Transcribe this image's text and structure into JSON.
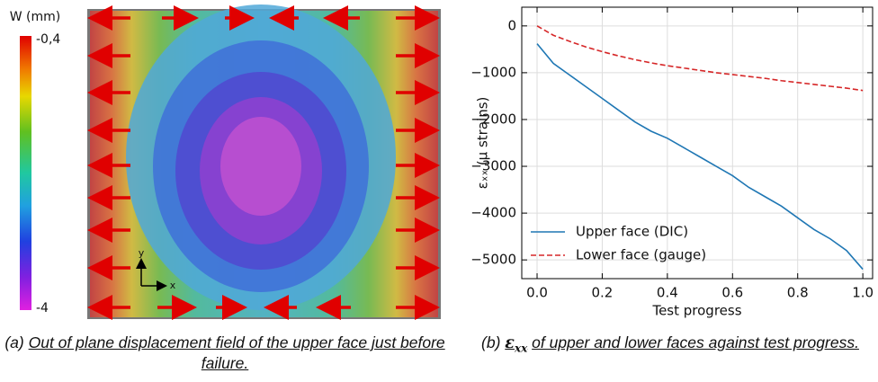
{
  "figure_a": {
    "colorbar_title": "W (mm)",
    "colorbar_top": "-0,4",
    "colorbar_bottom": "-4",
    "axis_y": "y",
    "axis_x": "x",
    "caption_tag": "(a)",
    "caption": "Out of plane displacement field of the upper face just before failure."
  },
  "caption_b": {
    "tag": "(b)",
    "symbol": "ε",
    "subscript": "xx",
    "text": "of upper and lower faces against test progress."
  },
  "chart_data": {
    "type": "line",
    "xlabel": "Test progress",
    "ylabel": "εₓₓ (µ strains)",
    "x": [
      0,
      0.05,
      0.1,
      0.15,
      0.2,
      0.25,
      0.3,
      0.35,
      0.4,
      0.45,
      0.5,
      0.55,
      0.6,
      0.65,
      0.7,
      0.75,
      0.8,
      0.85,
      0.9,
      0.95,
      1.0
    ],
    "series": [
      {
        "name": "Upper face (DIC)",
        "color": "#1f77b4",
        "dash": false,
        "values": [
          -380,
          -800,
          -1050,
          -1300,
          -1550,
          -1800,
          -2050,
          -2250,
          -2400,
          -2600,
          -2800,
          -3000,
          -3200,
          -3450,
          -3650,
          -3850,
          -4100,
          -4350,
          -4550,
          -4800,
          -5200
        ]
      },
      {
        "name": "Lower face (gauge)",
        "color": "#d62728",
        "dash": true,
        "values": [
          0,
          -200,
          -330,
          -450,
          -550,
          -640,
          -720,
          -790,
          -850,
          -900,
          -950,
          -1000,
          -1040,
          -1080,
          -1120,
          -1170,
          -1210,
          -1250,
          -1290,
          -1330,
          -1380
        ]
      }
    ],
    "xlim": [
      -0.047,
      1.03
    ],
    "ylim": [
      -5400,
      400
    ],
    "xticks": [
      {
        "value": 0,
        "label": "0.0"
      },
      0.2,
      0.4,
      0.6,
      0.8,
      {
        "value": 1,
        "label": "1.0"
      }
    ],
    "yticks": [
      0,
      {
        "value": -1000,
        "label": "−1000"
      },
      {
        "value": -2000,
        "label": "−2000"
      },
      {
        "value": -3000,
        "label": "−3000"
      },
      {
        "value": -4000,
        "label": "−4000"
      },
      {
        "value": -5000,
        "label": "−5000"
      }
    ],
    "grid": true,
    "legend": "lower left"
  }
}
